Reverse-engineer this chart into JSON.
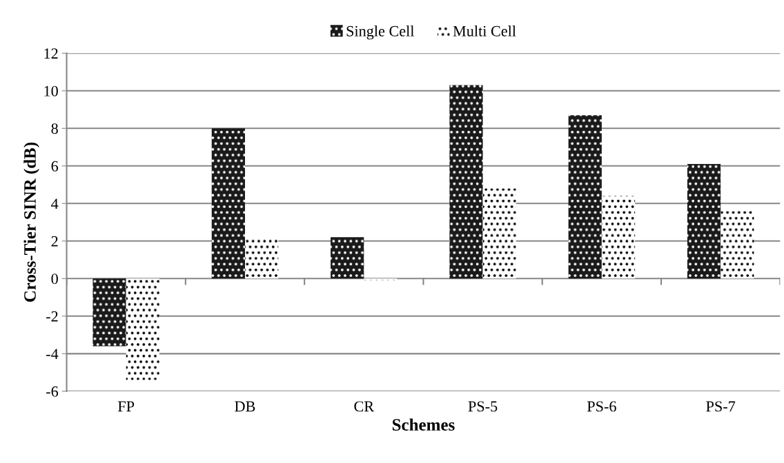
{
  "chart_data": {
    "type": "bar",
    "xlabel": "Schemes",
    "ylabel": "Cross-Tier SINR (dB)",
    "categories": [
      "FP",
      "DB",
      "CR",
      "PS-5",
      "PS-6",
      "PS-7"
    ],
    "series": [
      {
        "name": "Single Cell",
        "color": "#1a1a1a",
        "values": [
          -3.6,
          8.0,
          2.2,
          10.3,
          8.7,
          6.1
        ]
      },
      {
        "name": "Multi Cell",
        "color": "#ffffff",
        "values": [
          -5.4,
          2.2,
          -0.1,
          4.8,
          4.4,
          3.6
        ]
      }
    ],
    "ylim": [
      -6,
      12
    ],
    "yticks": [
      -6,
      -4,
      -2,
      0,
      2,
      4,
      6,
      8,
      10,
      12
    ],
    "grid": "y",
    "legend": "top"
  }
}
